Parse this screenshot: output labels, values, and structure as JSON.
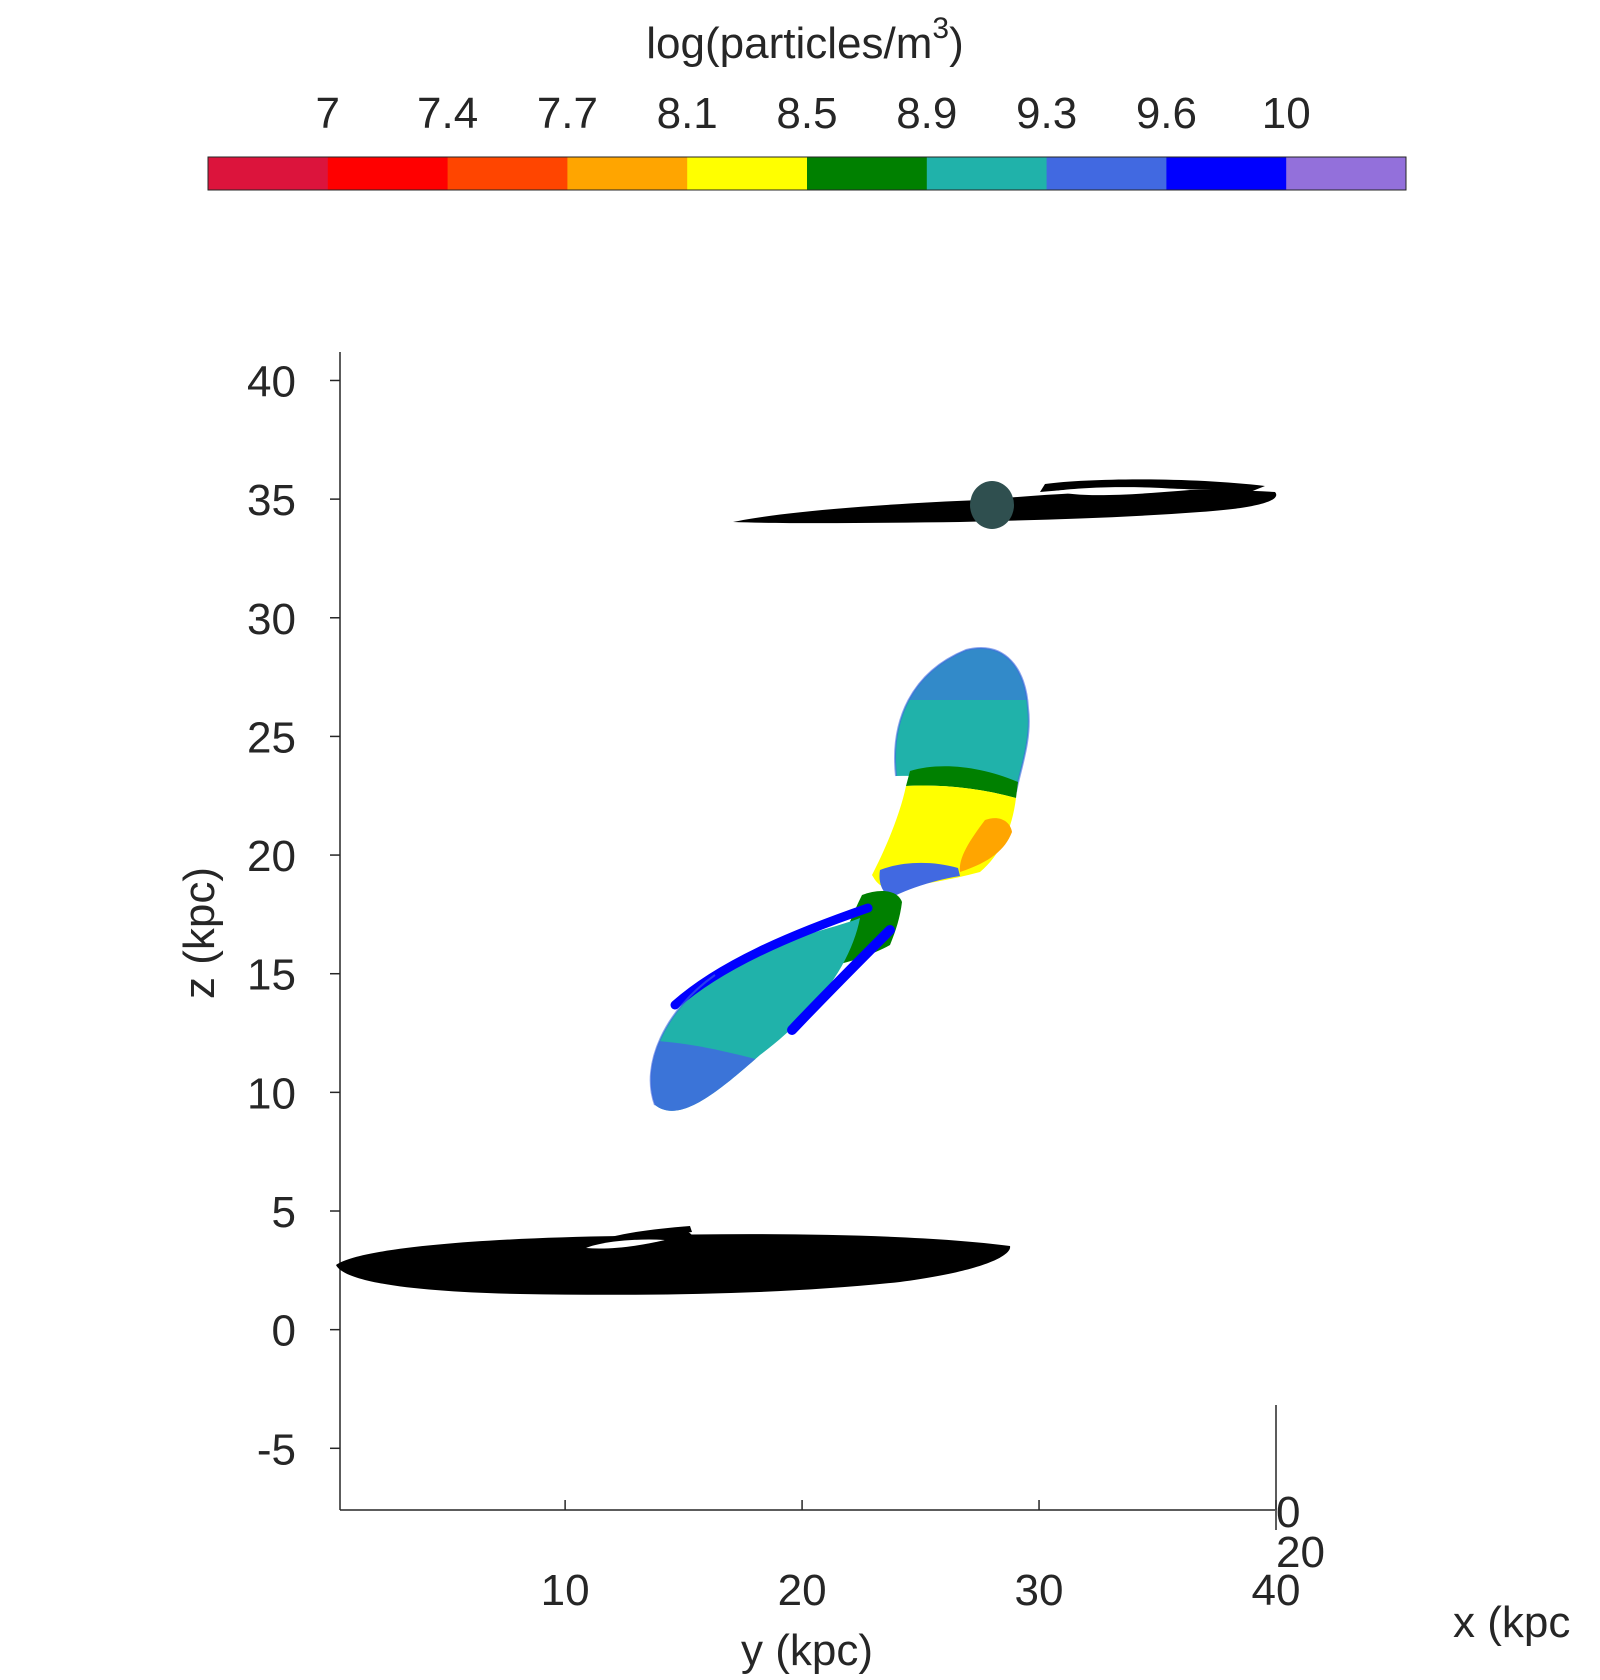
{
  "chart_data": {
    "type": "scatter",
    "colorbar": {
      "title": "log(particles/m",
      "title_superscript": "3",
      "title_suffix": ")",
      "ticks": [
        "7",
        "7.4",
        "7.7",
        "8.1",
        "8.5",
        "8.9",
        "9.3",
        "9.6",
        "10"
      ],
      "colors": [
        "#DC143C",
        "#FF0000",
        "#FF4500",
        "#FFA500",
        "#FFFF00",
        "#008000",
        "#20B2AA",
        "#4169E1",
        "#0000FF",
        "#9370DB"
      ],
      "location": "top"
    },
    "axes": {
      "zlabel": "z (kpc)",
      "ylabel": "y (kpc)",
      "xlabel": "x (kpc",
      "z_ticks": [
        "40",
        "35",
        "30",
        "25",
        "20",
        "15",
        "10",
        "5",
        "0",
        "-5"
      ],
      "z_tick_values": [
        40,
        35,
        30,
        25,
        20,
        15,
        10,
        5,
        0,
        -5
      ],
      "zlim": [
        -7.6,
        41.2
      ],
      "y_ticks": [
        "10",
        "20",
        "30",
        "40"
      ],
      "y_tick_values": [
        10,
        20,
        30,
        40
      ],
      "ylim": [
        0.5,
        40
      ],
      "x_ticks": [
        "0",
        "20"
      ],
      "grid": false
    },
    "galaxy_disks": [
      {
        "name": "",
        "y_center": 15,
        "z_center": 2.5,
        "color": "#000000"
      },
      {
        "name": "",
        "y_center": 28,
        "z_center": 34.5,
        "color": "#000000"
      }
    ],
    "bridge_stream": {
      "description_colors": [
        "#4169E1",
        "#20B2AA",
        "#008000",
        "#FFFF00",
        "#FFA500",
        "#0000FF"
      ],
      "y_range": [
        14,
        29
      ],
      "z_range": [
        9,
        28.5
      ]
    }
  }
}
